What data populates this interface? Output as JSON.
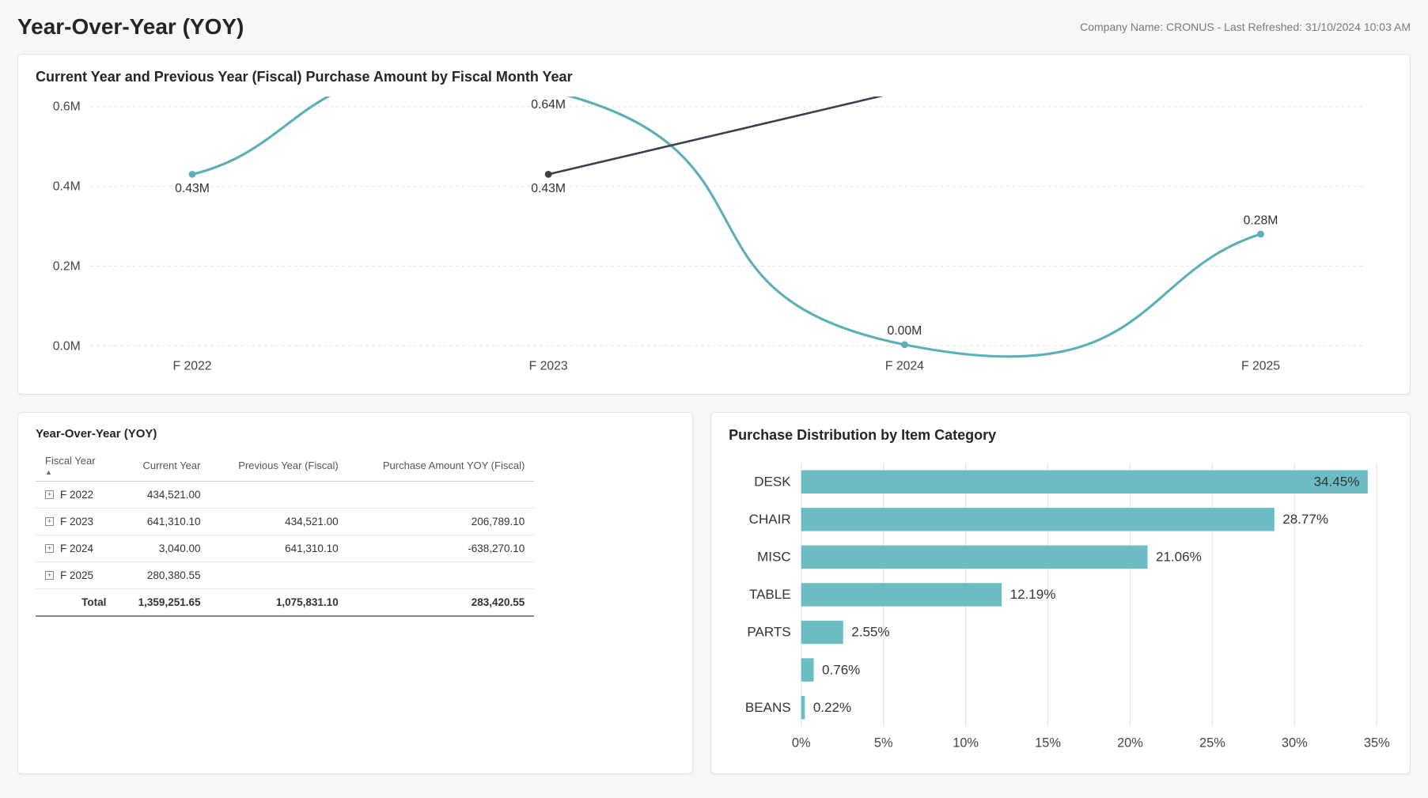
{
  "header": {
    "title": "Year-Over-Year (YOY)",
    "meta": "Company Name: CRONUS - Last Refreshed: 31/10/2024 10:03 AM"
  },
  "line_chart": {
    "type": "line",
    "title": "Current Year and Previous Year (Fiscal) Purchase Amount by Fiscal Month Year",
    "x_labels": [
      "F 2022",
      "F 2023",
      "F 2024",
      "F 2025"
    ],
    "y_ticks": [
      "0.0M",
      "0.2M",
      "0.4M",
      "0.6M"
    ],
    "ylim": [
      0,
      0.6
    ],
    "grid_color": "#e6e6e6",
    "background_color": "#ffffff",
    "series": [
      {
        "name": "Current Year",
        "color": "#5bb0b7",
        "line_width": 2.5,
        "marker": "circle",
        "smooth": true,
        "points": [
          {
            "x": "F 2022",
            "y": 0.43,
            "label": "0.43M",
            "label_pos": "below"
          },
          {
            "x": "F 2023",
            "y": 0.64,
            "label": "0.64M",
            "label_pos": "below"
          },
          {
            "x": "F 2024",
            "y": 0.003,
            "label": "0.00M",
            "label_pos": "above"
          },
          {
            "x": "F 2025",
            "y": 0.28,
            "label": "0.28M",
            "label_pos": "above"
          }
        ]
      },
      {
        "name": "Previous Year (Fiscal)",
        "color": "#3a3f4a",
        "line_width": 2,
        "marker": "circle",
        "smooth": false,
        "points": [
          {
            "x": "F 2023",
            "y": 0.43,
            "label": "0.43M",
            "label_pos": "below"
          },
          {
            "x": "F 2024",
            "y": 0.64,
            "label": "0.64M",
            "label_pos": "above-right"
          }
        ]
      }
    ]
  },
  "yoy_table": {
    "title": "Year-Over-Year (YOY)",
    "columns": [
      "Fiscal Year",
      "Current Year",
      "Previous Year (Fiscal)",
      "Purchase Amount YOY (Fiscal)"
    ],
    "sort_col": 0,
    "rows": [
      {
        "fy": "F 2022",
        "cy": "434,521.00",
        "py": "",
        "yoy": ""
      },
      {
        "fy": "F 2023",
        "cy": "641,310.10",
        "py": "434,521.00",
        "yoy": "206,789.10"
      },
      {
        "fy": "F 2024",
        "cy": "3,040.00",
        "py": "641,310.10",
        "yoy": "-638,270.10"
      },
      {
        "fy": "F 2025",
        "cy": "280,380.55",
        "py": "",
        "yoy": ""
      }
    ],
    "total_label": "Total",
    "total": {
      "cy": "1,359,251.65",
      "py": "1,075,831.10",
      "yoy": "283,420.55"
    }
  },
  "bar_chart": {
    "type": "bar-horizontal",
    "title": "Purchase Distribution by Item Category",
    "bar_color": "#6cbcc4",
    "grid_color": "#e6e6e6",
    "background_color": "#ffffff",
    "x_ticks": [
      "0%",
      "5%",
      "10%",
      "15%",
      "20%",
      "25%",
      "30%",
      "35%"
    ],
    "xlim": [
      0,
      35
    ],
    "categories": [
      {
        "label": "DESK",
        "value": 34.45,
        "text": "34.45%"
      },
      {
        "label": "CHAIR",
        "value": 28.77,
        "text": "28.77%"
      },
      {
        "label": "MISC",
        "value": 21.06,
        "text": "21.06%"
      },
      {
        "label": "TABLE",
        "value": 12.19,
        "text": "12.19%"
      },
      {
        "label": "PARTS",
        "value": 2.55,
        "text": "2.55%"
      },
      {
        "label": "",
        "value": 0.76,
        "text": "0.76%"
      },
      {
        "label": "BEANS",
        "value": 0.22,
        "text": "0.22%"
      }
    ]
  }
}
